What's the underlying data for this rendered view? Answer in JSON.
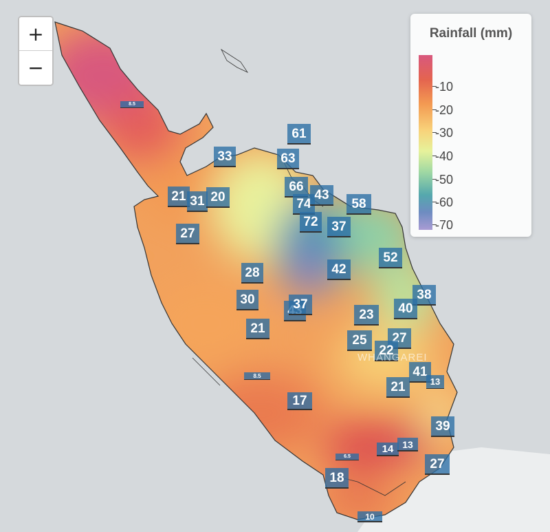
{
  "zoom": {
    "in_label": "+",
    "out_label": "−"
  },
  "legend": {
    "title": "Rainfall (mm)",
    "ticks": [
      "-10",
      "-20",
      "-30",
      "-40",
      "-50",
      "-60",
      "-70"
    ],
    "colors": [
      "#d8587e",
      "#e4644f",
      "#f39a52",
      "#f8d27a",
      "#e6f29b",
      "#9fd8a3",
      "#55a8ad",
      "#6e8cc1",
      "#a99bd3"
    ]
  },
  "place_label": "WHANGAREI",
  "stations": [
    {
      "v": "61"
    },
    {
      "v": "33"
    },
    {
      "v": "63"
    },
    {
      "v": "66"
    },
    {
      "v": "74"
    },
    {
      "v": "43"
    },
    {
      "v": "58"
    },
    {
      "v": "21"
    },
    {
      "v": "31"
    },
    {
      "v": "20"
    },
    {
      "v": "72"
    },
    {
      "v": "37"
    },
    {
      "v": "27"
    },
    {
      "v": "52"
    },
    {
      "v": "28"
    },
    {
      "v": "42"
    },
    {
      "v": "30"
    },
    {
      "v": "43"
    },
    {
      "v": "37"
    },
    {
      "v": "38"
    },
    {
      "v": "40"
    },
    {
      "v": "21"
    },
    {
      "v": "23"
    },
    {
      "v": "25"
    },
    {
      "v": "27"
    },
    {
      "v": "22"
    },
    {
      "v": "41"
    },
    {
      "v": "13"
    },
    {
      "v": "21"
    },
    {
      "v": "17"
    },
    {
      "v": "39"
    },
    {
      "v": "14"
    },
    {
      "v": "13"
    },
    {
      "v": "27"
    },
    {
      "v": "18"
    },
    {
      "v": "10"
    },
    {
      "v": "8.5"
    },
    {
      "v": "8.5"
    },
    {
      "v": "6.5"
    }
  ]
}
